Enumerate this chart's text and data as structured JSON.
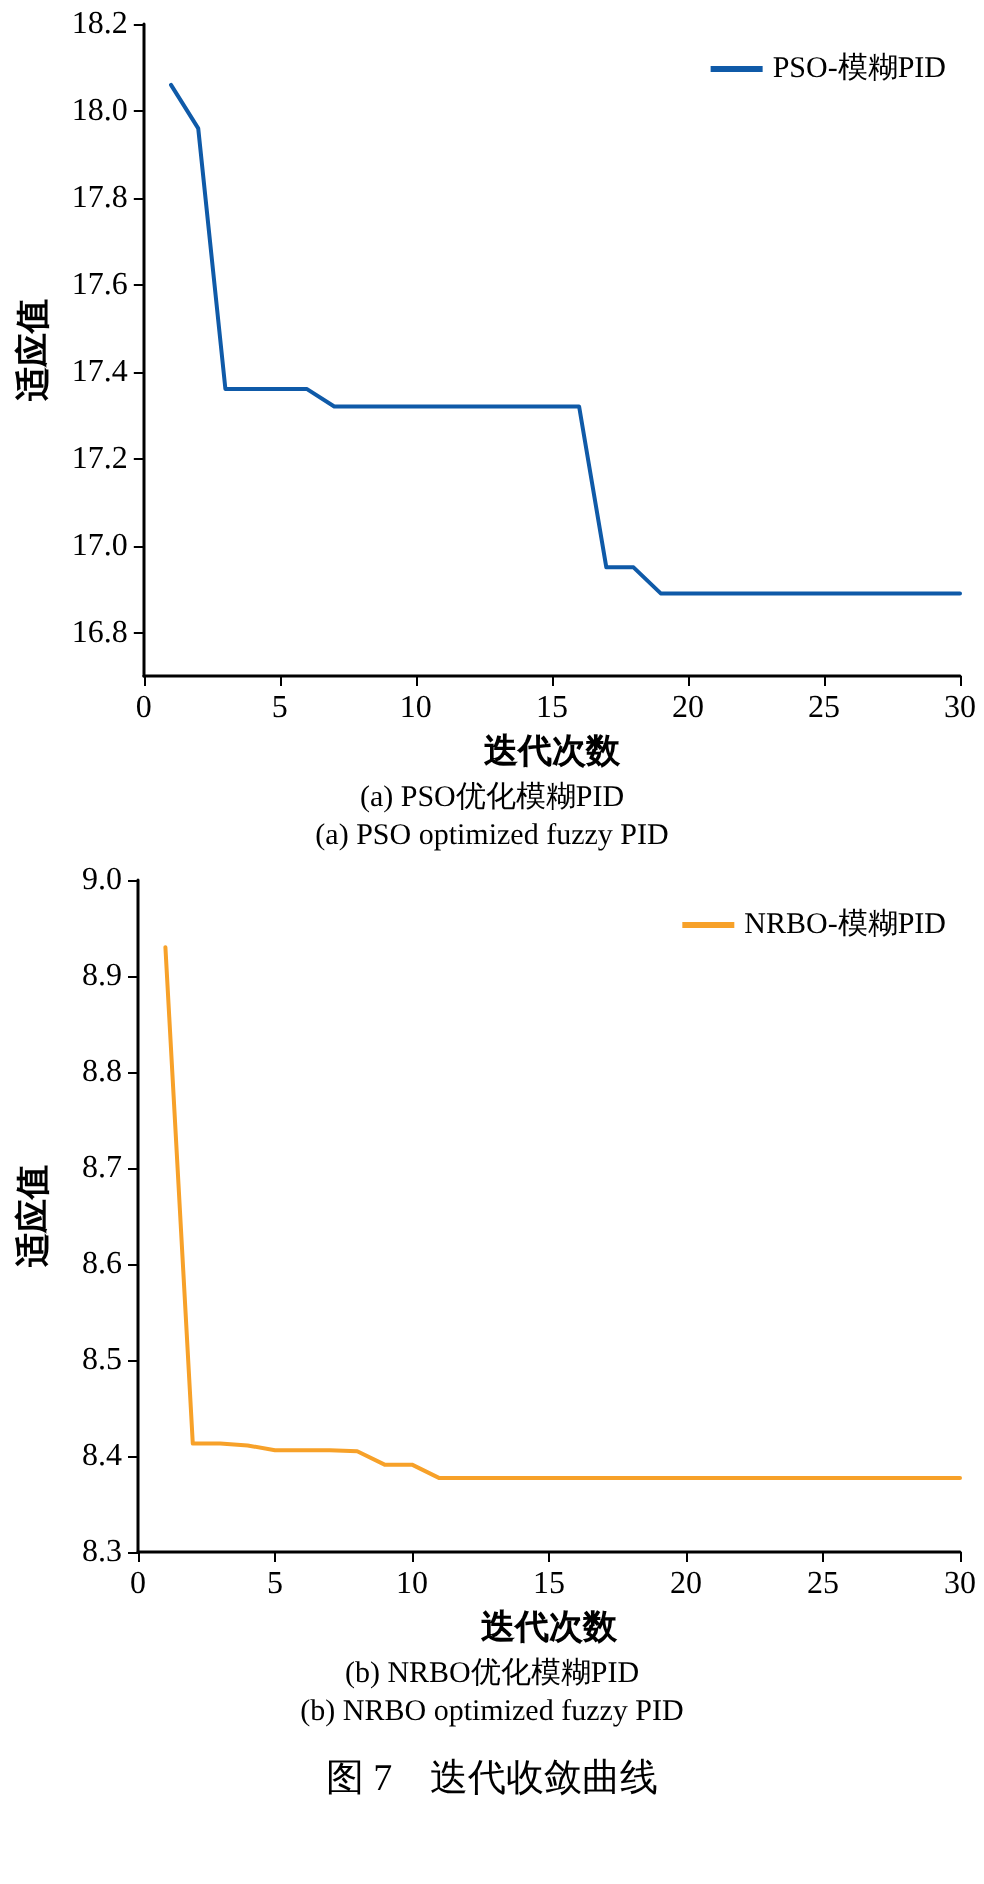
{
  "chart_data": [
    {
      "type": "line",
      "xlabel": "迭代次数",
      "ylabel": "适应值",
      "annotations": [
        "(a) PSO优化模糊PID",
        "(a) PSO optimized fuzzy PID"
      ],
      "x": [
        1,
        2,
        3,
        4,
        5,
        6,
        7,
        8,
        9,
        10,
        11,
        12,
        13,
        14,
        15,
        16,
        17,
        18,
        19,
        20,
        21,
        22,
        23,
        24,
        25,
        26,
        27,
        28,
        29,
        30
      ],
      "series": [
        {
          "name": "PSO-模糊PID",
          "color": "#0f5aa8",
          "values": [
            18.06,
            17.96,
            17.36,
            17.36,
            17.36,
            17.36,
            17.32,
            17.32,
            17.32,
            17.32,
            17.32,
            17.32,
            17.32,
            17.32,
            17.32,
            17.32,
            16.95,
            16.95,
            16.89,
            16.89,
            16.89,
            16.89,
            16.89,
            16.89,
            16.89,
            16.89,
            16.89,
            16.89,
            16.89,
            16.89
          ]
        }
      ],
      "xlim": [
        0,
        30
      ],
      "xticks": [
        0,
        5,
        10,
        15,
        20,
        25,
        30
      ],
      "ylim": [
        16.7,
        18.2
      ],
      "yticks": [
        16.8,
        {
          "value": 17,
          "label": "17.0"
        },
        17.2,
        17.4,
        17.6,
        17.8,
        {
          "value": 18,
          "label": "18.0"
        },
        18.2
      ],
      "grid": false,
      "legend": "top right",
      "marker": "none",
      "line_style": "solid"
    },
    {
      "type": "line",
      "xlabel": "迭代次数",
      "ylabel": "适应值",
      "annotations": [
        "(b) NRBO优化模糊PID",
        "(b) NRBO optimized fuzzy PID",
        "图 7　迭代收敛曲线"
      ],
      "x": [
        1,
        2,
        3,
        4,
        5,
        6,
        7,
        8,
        9,
        10,
        11,
        12,
        13,
        14,
        15,
        16,
        17,
        18,
        19,
        20,
        21,
        22,
        23,
        24,
        25,
        26,
        27,
        28,
        29,
        30
      ],
      "series": [
        {
          "name": "NRBO-模糊PID",
          "color": "#f7a129",
          "values": [
            8.93,
            8.413,
            8.413,
            8.411,
            8.406,
            8.406,
            8.406,
            8.405,
            8.391,
            8.391,
            8.377,
            8.377,
            8.377,
            8.377,
            8.377,
            8.377,
            8.377,
            8.377,
            8.377,
            8.377,
            8.377,
            8.377,
            8.377,
            8.377,
            8.377,
            8.377,
            8.377,
            8.377,
            8.377,
            8.377
          ]
        }
      ],
      "xlim": [
        0,
        30
      ],
      "xticks": [
        0,
        5,
        10,
        15,
        20,
        25,
        30
      ],
      "ylim": [
        8.3,
        9.0
      ],
      "yticks": [
        8.3,
        8.4,
        8.5,
        8.6,
        8.7,
        8.8,
        8.9,
        {
          "value": 9,
          "label": "9.0"
        }
      ],
      "grid": false,
      "legend": "top right",
      "marker": "none",
      "line_style": "solid"
    }
  ]
}
